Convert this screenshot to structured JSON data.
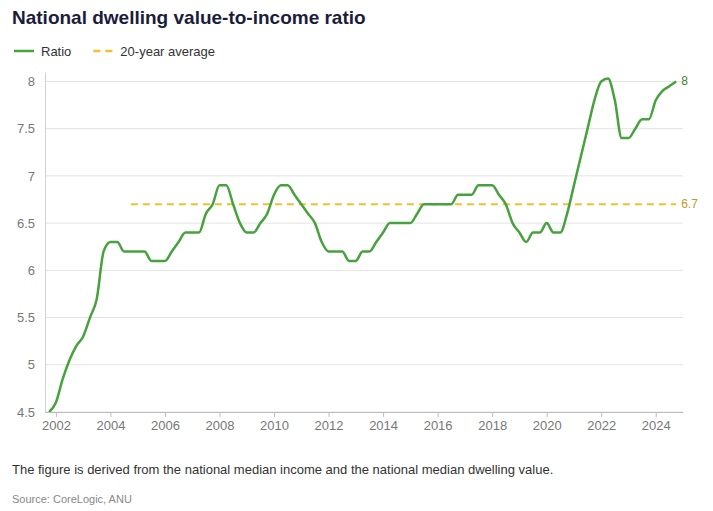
{
  "chart_data": {
    "type": "line",
    "title": "National dwelling value-to-income ratio",
    "note": "The figure is derived from the national median income and the national median dwelling value.",
    "source": "Source: CoreLogic, ANU",
    "x": [
      2001.75,
      2002,
      2002.25,
      2002.5,
      2002.75,
      2003,
      2003.25,
      2003.5,
      2003.75,
      2004,
      2004.25,
      2004.5,
      2004.75,
      2005,
      2005.25,
      2005.5,
      2005.75,
      2006,
      2006.25,
      2006.5,
      2006.75,
      2007,
      2007.25,
      2007.5,
      2007.75,
      2008,
      2008.25,
      2008.5,
      2008.75,
      2009,
      2009.25,
      2009.5,
      2009.75,
      2010,
      2010.25,
      2010.5,
      2010.75,
      2011,
      2011.25,
      2011.5,
      2011.75,
      2012,
      2012.25,
      2012.5,
      2012.75,
      2013,
      2013.25,
      2013.5,
      2013.75,
      2014,
      2014.25,
      2014.5,
      2014.75,
      2015,
      2015.25,
      2015.5,
      2015.75,
      2016,
      2016.25,
      2016.5,
      2016.75,
      2017,
      2017.25,
      2017.5,
      2017.75,
      2018,
      2018.25,
      2018.5,
      2018.75,
      2019,
      2019.25,
      2019.5,
      2019.75,
      2020,
      2020.25,
      2020.5,
      2020.75,
      2021,
      2021.25,
      2021.5,
      2021.75,
      2022,
      2022.25,
      2022.5,
      2022.75,
      2023,
      2023.25,
      2023.5,
      2023.75,
      2024,
      2024.25,
      2024.5,
      2024.75
    ],
    "series": [
      {
        "name": "Ratio",
        "color": "#46a23c",
        "line_style": "solid",
        "values": [
          4.5,
          4.6,
          4.85,
          5.05,
          5.2,
          5.3,
          5.5,
          5.7,
          6.2,
          6.3,
          6.3,
          6.2,
          6.2,
          6.2,
          6.2,
          6.1,
          6.1,
          6.1,
          6.2,
          6.3,
          6.4,
          6.4,
          6.4,
          6.6,
          6.7,
          6.9,
          6.9,
          6.7,
          6.5,
          6.4,
          6.4,
          6.5,
          6.6,
          6.8,
          6.9,
          6.9,
          6.8,
          6.7,
          6.6,
          6.5,
          6.3,
          6.2,
          6.2,
          6.2,
          6.1,
          6.1,
          6.2,
          6.2,
          6.3,
          6.4,
          6.5,
          6.5,
          6.5,
          6.5,
          6.6,
          6.7,
          6.7,
          6.7,
          6.7,
          6.7,
          6.8,
          6.8,
          6.8,
          6.9,
          6.9,
          6.9,
          6.8,
          6.7,
          6.5,
          6.4,
          6.3,
          6.4,
          6.4,
          6.5,
          6.4,
          6.4,
          6.6,
          6.9,
          7.2,
          7.5,
          7.8,
          8.0,
          8.03,
          7.8,
          7.4,
          7.4,
          7.5,
          7.6,
          7.6,
          7.8,
          7.9,
          7.95,
          8.0
        ]
      },
      {
        "name": "20-year average",
        "color": "#f2c02c",
        "line_style": "dashed",
        "values": [
          null,
          null,
          null,
          null,
          null,
          null,
          null,
          null,
          null,
          null,
          null,
          null,
          6.7,
          6.7,
          6.7,
          6.7,
          6.7,
          6.7,
          6.7,
          6.7,
          6.7,
          6.7,
          6.7,
          6.7,
          6.7,
          6.7,
          6.7,
          6.7,
          6.7,
          6.7,
          6.7,
          6.7,
          6.7,
          6.7,
          6.7,
          6.7,
          6.7,
          6.7,
          6.7,
          6.7,
          6.7,
          6.7,
          6.7,
          6.7,
          6.7,
          6.7,
          6.7,
          6.7,
          6.7,
          6.7,
          6.7,
          6.7,
          6.7,
          6.7,
          6.7,
          6.7,
          6.7,
          6.7,
          6.7,
          6.7,
          6.7,
          6.7,
          6.7,
          6.7,
          6.7,
          6.7,
          6.7,
          6.7,
          6.7,
          6.7,
          6.7,
          6.7,
          6.7,
          6.7,
          6.7,
          6.7,
          6.7,
          6.7,
          6.7,
          6.7,
          6.7,
          6.7,
          6.7,
          6.7,
          6.7,
          6.7,
          6.7,
          6.7,
          6.7,
          6.7,
          6.7,
          6.7,
          6.7
        ]
      }
    ],
    "annotations": [
      {
        "text": "8",
        "x": 2024.75,
        "y": 8,
        "series": "Ratio"
      },
      {
        "text": "6.7",
        "x": 2024.75,
        "y": 6.7,
        "series": "20-year average"
      }
    ],
    "xlim": [
      2001.6,
      2025
    ],
    "xticks": [
      2002,
      2004,
      2006,
      2008,
      2010,
      2012,
      2014,
      2016,
      2018,
      2020,
      2022,
      2024
    ],
    "ylim": [
      4.5,
      8.1
    ],
    "yticks": [
      4.5,
      5,
      5.5,
      6,
      6.5,
      7,
      7.5,
      8
    ],
    "grid": true,
    "legend": "top-left"
  }
}
